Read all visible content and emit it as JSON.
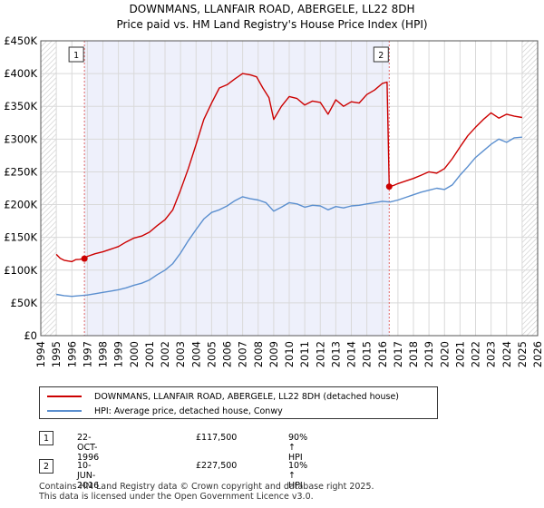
{
  "chart_data": {
    "type": "line",
    "title": "DOWNMANS, LLANFAIR ROAD, ABERGELE, LL22 8DH",
    "subtitle": "Price paid vs. HM Land Registry's House Price Index (HPI)",
    "xlabel": "",
    "ylabel": "",
    "xlim": [
      1994,
      2026
    ],
    "ylim": [
      0,
      450000
    ],
    "x_ticks": [
      1994,
      1995,
      1996,
      1997,
      1998,
      1999,
      2000,
      2001,
      2002,
      2003,
      2004,
      2005,
      2006,
      2007,
      2008,
      2009,
      2010,
      2011,
      2012,
      2013,
      2014,
      2015,
      2016,
      2017,
      2018,
      2019,
      2020,
      2021,
      2022,
      2023,
      2024,
      2025,
      2026
    ],
    "y_ticks": [
      {
        "value": 0,
        "label": "£0"
      },
      {
        "value": 50000,
        "label": "£50K"
      },
      {
        "value": 100000,
        "label": "£100K"
      },
      {
        "value": 150000,
        "label": "£150K"
      },
      {
        "value": 200000,
        "label": "£200K"
      },
      {
        "value": 250000,
        "label": "£250K"
      },
      {
        "value": 300000,
        "label": "£300K"
      },
      {
        "value": 350000,
        "label": "£350K"
      },
      {
        "value": 400000,
        "label": "£400K"
      },
      {
        "value": 450000,
        "label": "£450K"
      }
    ],
    "grid": true,
    "shaded_region": {
      "from": 1996.81,
      "to": 2016.44,
      "color": "#eef0fb"
    },
    "hatched_before": 1995.0,
    "hatched_after": 2025.0,
    "series": [
      {
        "name": "DOWNMANS, LLANFAIR ROAD, ABERGELE, LL22 8DH (detached house)",
        "color": "#cc0000",
        "x": [
          1995.0,
          1995.25,
          1995.5,
          1995.75,
          1996.0,
          1996.25,
          1996.5,
          1996.81,
          1997.0,
          1997.5,
          1998.0,
          1998.5,
          1999.0,
          1999.5,
          2000.0,
          2000.5,
          2001.0,
          2001.5,
          2002.0,
          2002.5,
          2003.0,
          2003.5,
          2004.0,
          2004.5,
          2005.0,
          2005.5,
          2006.0,
          2006.5,
          2007.0,
          2007.5,
          2007.9,
          2008.3,
          2008.7,
          2009.0,
          2009.5,
          2010.0,
          2010.5,
          2011.0,
          2011.5,
          2012.0,
          2012.5,
          2013.0,
          2013.5,
          2014.0,
          2014.5,
          2015.0,
          2015.5,
          2016.0,
          2016.3,
          2016.44,
          2016.7,
          2017.0,
          2017.5,
          2018.0,
          2018.5,
          2019.0,
          2019.5,
          2020.0,
          2020.5,
          2021.0,
          2021.5,
          2022.0,
          2022.5,
          2023.0,
          2023.5,
          2024.0,
          2024.5,
          2025.0
        ],
        "values": [
          124000,
          118000,
          115000,
          114000,
          113000,
          116000,
          116500,
          117500,
          121000,
          125000,
          128000,
          132000,
          136000,
          143000,
          149000,
          152000,
          158000,
          168000,
          177000,
          192000,
          222000,
          255000,
          292000,
          330000,
          355000,
          378000,
          383000,
          392000,
          400000,
          398000,
          395000,
          378000,
          363000,
          330000,
          350000,
          365000,
          362000,
          352000,
          358000,
          356000,
          338000,
          360000,
          350000,
          357000,
          355000,
          368000,
          375000,
          385000,
          387000,
          227500,
          229000,
          232000,
          236000,
          240000,
          245000,
          250000,
          248000,
          255000,
          270000,
          288000,
          305000,
          318000,
          330000,
          340000,
          332000,
          338000,
          335000,
          333000
        ]
      },
      {
        "name": "HPI: Average price, detached house, Conwy",
        "color": "#5b8fcf",
        "x": [
          1995.0,
          1995.5,
          1996.0,
          1996.5,
          1997.0,
          1997.5,
          1998.0,
          1998.5,
          1999.0,
          1999.5,
          2000.0,
          2000.5,
          2001.0,
          2001.5,
          2002.0,
          2002.5,
          2003.0,
          2003.5,
          2004.0,
          2004.5,
          2005.0,
          2005.5,
          2006.0,
          2006.5,
          2007.0,
          2007.5,
          2008.0,
          2008.5,
          2009.0,
          2009.5,
          2010.0,
          2010.5,
          2011.0,
          2011.5,
          2012.0,
          2012.5,
          2013.0,
          2013.5,
          2014.0,
          2014.5,
          2015.0,
          2015.5,
          2016.0,
          2016.5,
          2017.0,
          2017.5,
          2018.0,
          2018.5,
          2019.0,
          2019.5,
          2020.0,
          2020.5,
          2021.0,
          2021.5,
          2022.0,
          2022.5,
          2023.0,
          2023.5,
          2024.0,
          2024.5,
          2025.0
        ],
        "values": [
          63000,
          61000,
          60000,
          61000,
          62000,
          64000,
          66000,
          68000,
          70000,
          73000,
          77000,
          80000,
          85000,
          93000,
          100000,
          110000,
          126000,
          145000,
          162000,
          178000,
          188000,
          192000,
          198000,
          206000,
          212000,
          209000,
          207000,
          203000,
          190000,
          196000,
          203000,
          201000,
          196000,
          199000,
          198000,
          192000,
          197000,
          195000,
          198000,
          199000,
          201000,
          203000,
          205000,
          204000,
          207000,
          211000,
          215000,
          219000,
          222000,
          225000,
          223000,
          230000,
          245000,
          258000,
          272000,
          282000,
          292000,
          300000,
          295000,
          302000,
          303000
        ]
      }
    ],
    "annotations": [
      {
        "label": "1",
        "x": 1996.81,
        "value": 117500
      },
      {
        "label": "2",
        "x": 2016.44,
        "value": 227500
      }
    ]
  },
  "legend": {
    "property_label": "DOWNMANS, LLANFAIR ROAD, ABERGELE, LL22 8DH (detached house)",
    "hpi_label": "HPI: Average price, detached house, Conwy"
  },
  "sales": [
    {
      "num": "1",
      "date": "22-OCT-1996",
      "price": "£117,500",
      "hpi": "90% ↑ HPI"
    },
    {
      "num": "2",
      "date": "10-JUN-2016",
      "price": "£227,500",
      "hpi": "10% ↑ HPI"
    }
  ],
  "footer": {
    "line1": "Contains HM Land Registry data © Crown copyright and database right 2025.",
    "line2": "This data is licensed under the Open Government Licence v3.0."
  }
}
